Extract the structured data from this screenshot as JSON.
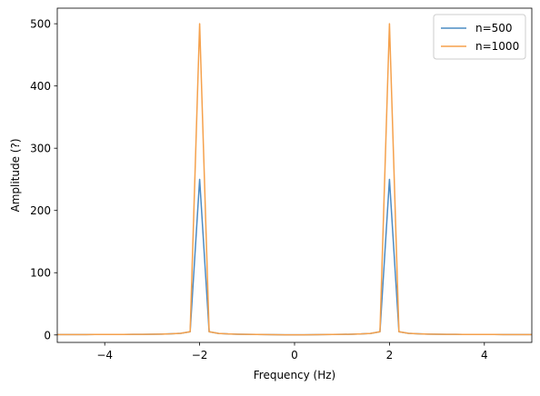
{
  "chart_data": {
    "type": "line",
    "title": "",
    "xlabel": "Frequency (Hz)",
    "ylabel": "Amplitude (?)",
    "xlim": [
      -5,
      5
    ],
    "ylim": [
      -12,
      525
    ],
    "xticks": [
      -4,
      -2,
      0,
      2,
      4
    ],
    "xtick_labels": [
      "−4",
      "−2",
      "0",
      "2",
      "4"
    ],
    "yticks": [
      0,
      100,
      200,
      300,
      400,
      500
    ],
    "ytick_labels": [
      "0",
      "100",
      "200",
      "300",
      "400",
      "500"
    ],
    "grid": false,
    "legend_position": "top-right",
    "series": [
      {
        "name": "n=500",
        "color": "#4c8bc4",
        "x": [
          -5.0,
          -4.8,
          -4.6,
          -4.4,
          -4.2,
          -4.0,
          -3.8,
          -3.6,
          -3.4,
          -3.2,
          -3.0,
          -2.8,
          -2.6,
          -2.4,
          -2.2,
          -2.0,
          -1.8,
          -1.6,
          -1.4,
          -1.2,
          -1.0,
          -0.8,
          -0.6,
          -0.4,
          -0.2,
          0.0,
          0.2,
          0.4,
          0.6,
          0.8,
          1.0,
          1.2,
          1.4,
          1.6,
          1.8,
          2.0,
          2.2,
          2.4,
          2.6,
          2.8,
          3.0,
          3.2,
          3.4,
          3.6,
          3.8,
          4.0,
          4.2,
          4.4,
          4.6,
          4.8,
          5.0
        ],
        "y": [
          0.5,
          0.5,
          0.6,
          0.6,
          0.7,
          0.7,
          0.8,
          0.8,
          0.9,
          1.0,
          1.1,
          1.3,
          1.8,
          2.6,
          5.2,
          250,
          5.2,
          2.4,
          1.6,
          1.2,
          0.9,
          0.7,
          0.6,
          0.4,
          0.3,
          0.2,
          0.3,
          0.4,
          0.6,
          0.7,
          0.9,
          1.2,
          1.6,
          2.4,
          5.2,
          250,
          5.2,
          2.6,
          1.8,
          1.3,
          1.1,
          1.0,
          0.9,
          0.8,
          0.8,
          0.7,
          0.7,
          0.6,
          0.6,
          0.5,
          0.5
        ]
      },
      {
        "name": "n=1000",
        "color": "#f5a14c",
        "x": [
          -5.0,
          -4.8,
          -4.6,
          -4.4,
          -4.2,
          -4.0,
          -3.8,
          -3.6,
          -3.4,
          -3.2,
          -3.0,
          -2.8,
          -2.6,
          -2.4,
          -2.2,
          -2.0,
          -1.8,
          -1.6,
          -1.4,
          -1.2,
          -1.0,
          -0.8,
          -0.6,
          -0.4,
          -0.2,
          0.0,
          0.2,
          0.4,
          0.6,
          0.8,
          1.0,
          1.2,
          1.4,
          1.6,
          1.8,
          2.0,
          2.2,
          2.4,
          2.6,
          2.8,
          3.0,
          3.2,
          3.4,
          3.6,
          3.8,
          4.0,
          4.2,
          4.4,
          4.6,
          4.8,
          5.0
        ],
        "y": [
          0.5,
          0.5,
          0.6,
          0.6,
          0.7,
          0.7,
          0.8,
          0.8,
          0.9,
          1.0,
          1.1,
          1.3,
          1.8,
          2.6,
          5.2,
          500,
          5.2,
          2.4,
          1.6,
          1.2,
          0.9,
          0.7,
          0.6,
          0.4,
          0.3,
          0.2,
          0.3,
          0.4,
          0.6,
          0.7,
          0.9,
          1.2,
          1.6,
          2.4,
          5.2,
          500,
          5.2,
          2.6,
          1.8,
          1.3,
          1.1,
          1.0,
          0.9,
          0.8,
          0.8,
          0.7,
          0.7,
          0.6,
          0.6,
          0.5,
          0.5
        ]
      }
    ]
  }
}
